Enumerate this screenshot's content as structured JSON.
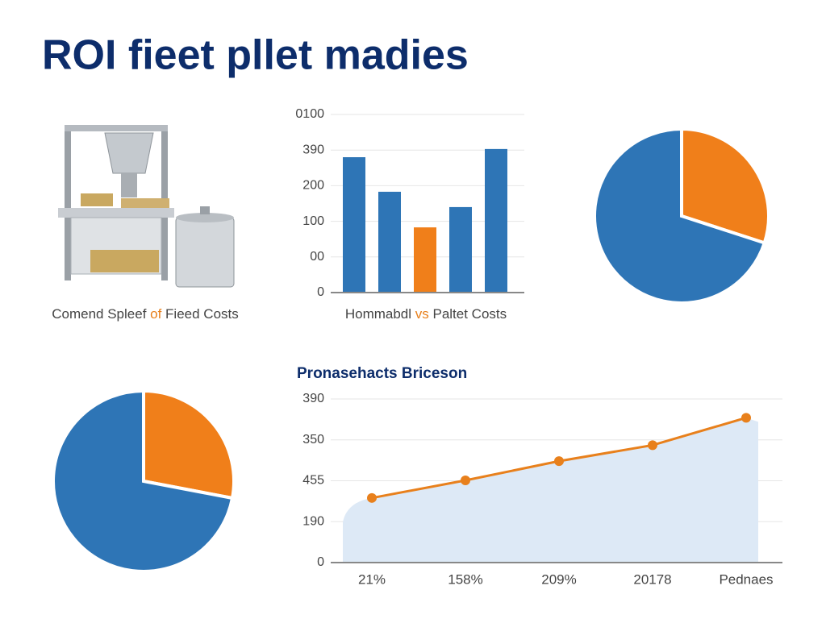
{
  "title": "ROI fieet pllet madies",
  "image_caption": [
    "Comend Spleef ",
    "of",
    " Fieed Costs"
  ],
  "chart_data": [
    {
      "type": "bar",
      "title": [
        "Hommabdl ",
        "vs",
        " Paltet Costs"
      ],
      "categories": [
        null,
        null,
        null,
        null,
        null
      ],
      "values": [
        380,
        283,
        183,
        240,
        403
      ],
      "colors": [
        "#2e75b6",
        "#2e75b6",
        "#f07f1a",
        "#2e75b6",
        "#2e75b6"
      ],
      "ylim": [
        0,
        500
      ],
      "yticks": [
        0,
        {
          "value": 100,
          "label": "00"
        },
        {
          "value": 200,
          "label": "100"
        },
        {
          "value": 300,
          "label": "200"
        },
        {
          "value": 400,
          "label": "390"
        },
        {
          "value": 500,
          "label": "0100"
        }
      ],
      "grid": true
    },
    {
      "type": "pie",
      "values": [
        30,
        70
      ],
      "colors": [
        "#f07f1a",
        "#2e75b6"
      ]
    },
    {
      "type": "pie",
      "values": [
        28,
        72
      ],
      "colors": [
        "#f07f1a",
        "#2e75b6"
      ]
    },
    {
      "type": "line",
      "title": "Pronasehacts Briceson",
      "categories": [
        "21%",
        "158%",
        "209%",
        "20178",
        "Pednaes"
      ],
      "values": [
        158,
        201,
        248,
        287,
        354
      ],
      "color": "#e8801c",
      "area_color": "#dde9f6",
      "ylim": [
        0,
        400
      ],
      "yticks": [
        0,
        {
          "value": 100,
          "label": "190"
        },
        {
          "value": 200,
          "label": "455"
        },
        {
          "value": 300,
          "label": "350"
        },
        {
          "value": 400,
          "label": "390"
        }
      ],
      "grid": true
    }
  ]
}
